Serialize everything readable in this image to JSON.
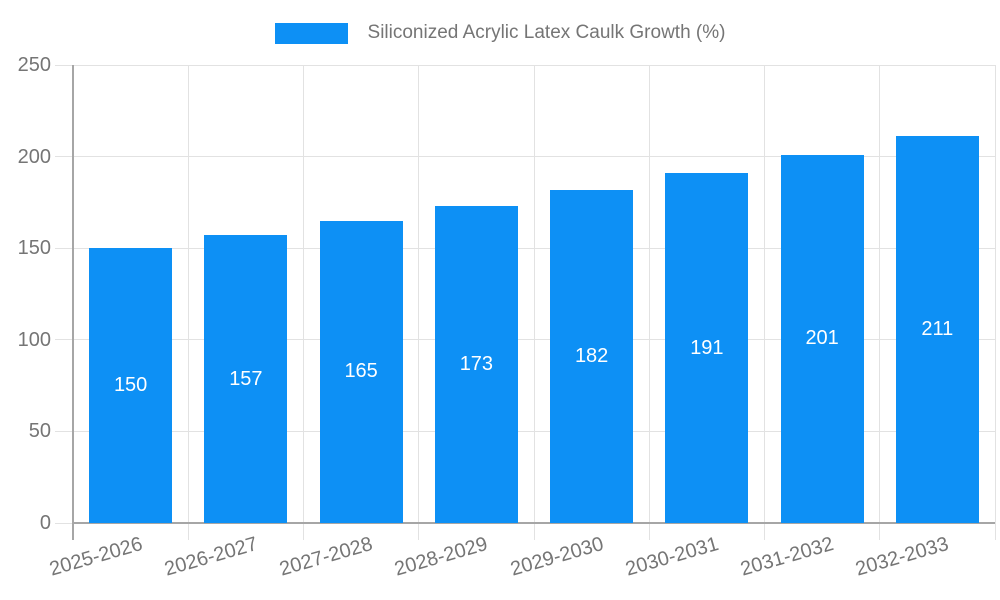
{
  "legend": {
    "label": "Siliconized Acrylic Latex Caulk Growth (%)"
  },
  "chart_data": {
    "type": "bar",
    "title": "Siliconized Acrylic Latex Caulk Growth (%)",
    "categories": [
      "2025-2026",
      "2026-2027",
      "2027-2028",
      "2028-2029",
      "2029-2030",
      "2030-2031",
      "2031-2032",
      "2032-2033"
    ],
    "values": [
      150,
      157,
      165,
      173,
      182,
      191,
      201,
      211
    ],
    "xlabel": "",
    "ylabel": "",
    "ylim": [
      0,
      250
    ],
    "yticks": [
      0,
      50,
      100,
      150,
      200,
      250
    ],
    "grid": true,
    "legend_position": "top-center",
    "value_label_style": "white-centered-inside-bar",
    "colors": {
      "bar": "#0d90f5",
      "gridline": "#e2e2e2",
      "axis": "#a6a6a6",
      "tick_text": "#757575",
      "value_text": "#ffffff",
      "background": "#ffffff"
    }
  }
}
